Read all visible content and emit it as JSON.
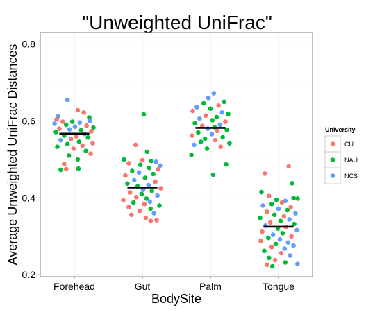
{
  "chart_data": {
    "type": "scatter",
    "subtype": "jitter-strip",
    "title": "\"Unweighted UniFrac\"",
    "xlabel": "BodySite",
    "ylabel": "Average Unweighted UniFrac Distances",
    "categories": [
      "Forehead",
      "Gut",
      "Palm",
      "Tongue"
    ],
    "ylim": [
      0.195,
      0.83
    ],
    "yticks": [
      0.2,
      0.4,
      0.6,
      0.8
    ],
    "ytick_labels": [
      "0.2",
      "0.4",
      "0.6",
      "0.8"
    ],
    "grid": true,
    "legend": {
      "title": "University",
      "placement": "right"
    },
    "series": [
      {
        "name": "CU",
        "color": "#F8766D"
      },
      {
        "name": "NAU",
        "color": "#00BA38"
      },
      {
        "name": "NCS",
        "color": "#619CFF"
      }
    ],
    "means": [
      {
        "category": "Forehead",
        "value": 0.567
      },
      {
        "category": "Gut",
        "value": 0.427
      },
      {
        "category": "Palm",
        "value": 0.582
      },
      {
        "category": "Tongue",
        "value": 0.325
      }
    ],
    "points": [
      {
        "c": "Forehead",
        "s": "NCS",
        "j": -0.1,
        "y": 0.655
      },
      {
        "c": "Forehead",
        "s": "CU",
        "j": 0.05,
        "y": 0.628
      },
      {
        "c": "Forehead",
        "s": "CU",
        "j": 0.14,
        "y": 0.622
      },
      {
        "c": "Forehead",
        "s": "NCS",
        "j": -0.24,
        "y": 0.612
      },
      {
        "c": "Forehead",
        "s": "CU",
        "j": -0.26,
        "y": 0.604
      },
      {
        "c": "Forehead",
        "s": "NAU",
        "j": 0.22,
        "y": 0.609
      },
      {
        "c": "Forehead",
        "s": "NCS",
        "j": 0.23,
        "y": 0.6
      },
      {
        "c": "Forehead",
        "s": "CU",
        "j": -0.17,
        "y": 0.598
      },
      {
        "c": "Forehead",
        "s": "NAU",
        "j": -0.03,
        "y": 0.598
      },
      {
        "c": "Forehead",
        "s": "NCS",
        "j": 0.08,
        "y": 0.596
      },
      {
        "c": "Forehead",
        "s": "NCS",
        "j": -0.29,
        "y": 0.593
      },
      {
        "c": "Forehead",
        "s": "NAU",
        "j": -0.12,
        "y": 0.59
      },
      {
        "c": "Forehead",
        "s": "CU",
        "j": 0.18,
        "y": 0.588
      },
      {
        "c": "Forehead",
        "s": "NCS",
        "j": 0.01,
        "y": 0.585
      },
      {
        "c": "Forehead",
        "s": "NAU",
        "j": 0.28,
        "y": 0.583
      },
      {
        "c": "Forehead",
        "s": "CU",
        "j": -0.22,
        "y": 0.58
      },
      {
        "c": "Forehead",
        "s": "NCS",
        "j": -0.07,
        "y": 0.578
      },
      {
        "c": "Forehead",
        "s": "NAU",
        "j": 0.1,
        "y": 0.576
      },
      {
        "c": "Forehead",
        "s": "CU",
        "j": 0.25,
        "y": 0.573
      },
      {
        "c": "Forehead",
        "s": "NAU",
        "j": -0.27,
        "y": 0.571
      },
      {
        "c": "Forehead",
        "s": "NCS",
        "j": 0.15,
        "y": 0.566
      },
      {
        "c": "Forehead",
        "s": "NAU",
        "j": -0.15,
        "y": 0.562
      },
      {
        "c": "Forehead",
        "s": "CU",
        "j": 0.03,
        "y": 0.56
      },
      {
        "c": "Forehead",
        "s": "NAU",
        "j": 0.2,
        "y": 0.557
      },
      {
        "c": "Forehead",
        "s": "CU",
        "j": -0.05,
        "y": 0.553
      },
      {
        "c": "Forehead",
        "s": "NCS",
        "j": -0.2,
        "y": 0.55
      },
      {
        "c": "Forehead",
        "s": "NAU",
        "j": 0.07,
        "y": 0.546
      },
      {
        "c": "Forehead",
        "s": "CU",
        "j": 0.27,
        "y": 0.542
      },
      {
        "c": "Forehead",
        "s": "NAU",
        "j": -0.1,
        "y": 0.54
      },
      {
        "c": "Forehead",
        "s": "CU",
        "j": 0.12,
        "y": 0.536
      },
      {
        "c": "Forehead",
        "s": "NAU",
        "j": -0.25,
        "y": 0.533
      },
      {
        "c": "Forehead",
        "s": "CU",
        "j": -0.01,
        "y": 0.528
      },
      {
        "c": "Forehead",
        "s": "NAU",
        "j": 0.17,
        "y": 0.522
      },
      {
        "c": "Forehead",
        "s": "CU",
        "j": 0.24,
        "y": 0.515
      },
      {
        "c": "Forehead",
        "s": "NAU",
        "j": -0.08,
        "y": 0.51
      },
      {
        "c": "Forehead",
        "s": "NAU",
        "j": 0.05,
        "y": 0.5
      },
      {
        "c": "Forehead",
        "s": "CU",
        "j": -0.15,
        "y": 0.488
      },
      {
        "c": "Forehead",
        "s": "NAU",
        "j": 0.06,
        "y": 0.476
      },
      {
        "c": "Forehead",
        "s": "NAU",
        "j": -0.2,
        "y": 0.473
      },
      {
        "c": "Forehead",
        "s": "CU",
        "j": -0.12,
        "y": 0.475
      },
      {
        "c": "Gut",
        "s": "NAU",
        "j": 0.02,
        "y": 0.617
      },
      {
        "c": "Gut",
        "s": "CU",
        "j": -0.1,
        "y": 0.538
      },
      {
        "c": "Gut",
        "s": "NAU",
        "j": 0.07,
        "y": 0.52
      },
      {
        "c": "Gut",
        "s": "NAU",
        "j": -0.27,
        "y": 0.5
      },
      {
        "c": "Gut",
        "s": "CU",
        "j": 0.0,
        "y": 0.498
      },
      {
        "c": "Gut",
        "s": "NAU",
        "j": 0.13,
        "y": 0.496
      },
      {
        "c": "Gut",
        "s": "NCS",
        "j": 0.2,
        "y": 0.494
      },
      {
        "c": "Gut",
        "s": "CU",
        "j": -0.2,
        "y": 0.49
      },
      {
        "c": "Gut",
        "s": "NAU",
        "j": -0.03,
        "y": 0.486
      },
      {
        "c": "Gut",
        "s": "NCS",
        "j": 0.26,
        "y": 0.484
      },
      {
        "c": "Gut",
        "s": "NAU",
        "j": 0.1,
        "y": 0.478
      },
      {
        "c": "Gut",
        "s": "CU",
        "j": 0.23,
        "y": 0.474
      },
      {
        "c": "Gut",
        "s": "NAU",
        "j": -0.15,
        "y": 0.47
      },
      {
        "c": "Gut",
        "s": "NCS",
        "j": -0.05,
        "y": 0.466
      },
      {
        "c": "Gut",
        "s": "NAU",
        "j": 0.16,
        "y": 0.462
      },
      {
        "c": "Gut",
        "s": "CU",
        "j": -0.25,
        "y": 0.458
      },
      {
        "c": "Gut",
        "s": "NAU",
        "j": 0.04,
        "y": 0.452
      },
      {
        "c": "Gut",
        "s": "NCS",
        "j": -0.12,
        "y": 0.446
      },
      {
        "c": "Gut",
        "s": "CU",
        "j": 0.19,
        "y": 0.442
      },
      {
        "c": "Gut",
        "s": "NAU",
        "j": -0.22,
        "y": 0.437
      },
      {
        "c": "Gut",
        "s": "NCS",
        "j": 0.09,
        "y": 0.433
      },
      {
        "c": "Gut",
        "s": "NAU",
        "j": -0.07,
        "y": 0.43
      },
      {
        "c": "Gut",
        "s": "CU",
        "j": 0.27,
        "y": 0.425
      },
      {
        "c": "Gut",
        "s": "NCS",
        "j": 0.01,
        "y": 0.421
      },
      {
        "c": "Gut",
        "s": "NAU",
        "j": 0.14,
        "y": 0.418
      },
      {
        "c": "Gut",
        "s": "CU",
        "j": -0.18,
        "y": 0.414
      },
      {
        "c": "Gut",
        "s": "NAU",
        "j": -0.01,
        "y": 0.41
      },
      {
        "c": "Gut",
        "s": "NCS",
        "j": 0.22,
        "y": 0.406
      },
      {
        "c": "Gut",
        "s": "CU",
        "j": -0.09,
        "y": 0.402
      },
      {
        "c": "Gut",
        "s": "NAU",
        "j": 0.06,
        "y": 0.398
      },
      {
        "c": "Gut",
        "s": "CU",
        "j": -0.28,
        "y": 0.394
      },
      {
        "c": "Gut",
        "s": "NCS",
        "j": 0.11,
        "y": 0.39
      },
      {
        "c": "Gut",
        "s": "NAU",
        "j": -0.13,
        "y": 0.388
      },
      {
        "c": "Gut",
        "s": "CU",
        "j": 0.03,
        "y": 0.384
      },
      {
        "c": "Gut",
        "s": "NAU",
        "j": 0.25,
        "y": 0.38
      },
      {
        "c": "Gut",
        "s": "CU",
        "j": -0.2,
        "y": 0.376
      },
      {
        "c": "Gut",
        "s": "NAU",
        "j": 0.12,
        "y": 0.372
      },
      {
        "c": "Gut",
        "s": "CU",
        "j": -0.04,
        "y": 0.366
      },
      {
        "c": "Gut",
        "s": "NCS",
        "j": 0.17,
        "y": 0.36
      },
      {
        "c": "Gut",
        "s": "CU",
        "j": -0.16,
        "y": 0.356
      },
      {
        "c": "Gut",
        "s": "CU",
        "j": 0.05,
        "y": 0.348
      },
      {
        "c": "Gut",
        "s": "CU",
        "j": 0.12,
        "y": 0.34
      },
      {
        "c": "Gut",
        "s": "CU",
        "j": 0.21,
        "y": 0.342
      },
      {
        "c": "Palm",
        "s": "NCS",
        "j": 0.05,
        "y": 0.672
      },
      {
        "c": "Palm",
        "s": "NCS",
        "j": -0.03,
        "y": 0.66
      },
      {
        "c": "Palm",
        "s": "NAU",
        "j": 0.2,
        "y": 0.65
      },
      {
        "c": "Palm",
        "s": "NAU",
        "j": -0.1,
        "y": 0.646
      },
      {
        "c": "Palm",
        "s": "CU",
        "j": 0.12,
        "y": 0.64
      },
      {
        "c": "Palm",
        "s": "NCS",
        "j": -0.2,
        "y": 0.636
      },
      {
        "c": "Palm",
        "s": "NAU",
        "j": 0.0,
        "y": 0.632
      },
      {
        "c": "Palm",
        "s": "CU",
        "j": -0.26,
        "y": 0.626
      },
      {
        "c": "Palm",
        "s": "NCS",
        "j": 0.17,
        "y": 0.622
      },
      {
        "c": "Palm",
        "s": "NAU",
        "j": 0.26,
        "y": 0.618
      },
      {
        "c": "Palm",
        "s": "CU",
        "j": -0.07,
        "y": 0.614
      },
      {
        "c": "Palm",
        "s": "NAU",
        "j": 0.09,
        "y": 0.61
      },
      {
        "c": "Palm",
        "s": "NCS",
        "j": -0.16,
        "y": 0.606
      },
      {
        "c": "Palm",
        "s": "NAU",
        "j": 0.03,
        "y": 0.602
      },
      {
        "c": "Palm",
        "s": "CU",
        "j": 0.22,
        "y": 0.598
      },
      {
        "c": "Palm",
        "s": "NAU",
        "j": -0.23,
        "y": 0.594
      },
      {
        "c": "Palm",
        "s": "NCS",
        "j": 0.14,
        "y": 0.59
      },
      {
        "c": "Palm",
        "s": "CU",
        "j": -0.12,
        "y": 0.587
      },
      {
        "c": "Palm",
        "s": "NAU",
        "j": 0.06,
        "y": 0.584
      },
      {
        "c": "Palm",
        "s": "NCS",
        "j": -0.04,
        "y": 0.58
      },
      {
        "c": "Palm",
        "s": "NAU",
        "j": 0.24,
        "y": 0.577
      },
      {
        "c": "Palm",
        "s": "CU",
        "j": 0.1,
        "y": 0.574
      },
      {
        "c": "Palm",
        "s": "NAU",
        "j": -0.18,
        "y": 0.57
      },
      {
        "c": "Palm",
        "s": "NCS",
        "j": 0.02,
        "y": 0.566
      },
      {
        "c": "Palm",
        "s": "CU",
        "j": -0.27,
        "y": 0.562
      },
      {
        "c": "Palm",
        "s": "NAU",
        "j": 0.18,
        "y": 0.558
      },
      {
        "c": "Palm",
        "s": "NAU",
        "j": -0.08,
        "y": 0.554
      },
      {
        "c": "Palm",
        "s": "CU",
        "j": 0.07,
        "y": 0.55
      },
      {
        "c": "Palm",
        "s": "NAU",
        "j": -0.14,
        "y": 0.546
      },
      {
        "c": "Palm",
        "s": "NAU",
        "j": 0.28,
        "y": 0.542
      },
      {
        "c": "Palm",
        "s": "NCS",
        "j": -0.24,
        "y": 0.538
      },
      {
        "c": "Palm",
        "s": "CU",
        "j": 0.15,
        "y": 0.533
      },
      {
        "c": "Palm",
        "s": "NAU",
        "j": -0.05,
        "y": 0.528
      },
      {
        "c": "Palm",
        "s": "NAU",
        "j": -0.28,
        "y": 0.512
      },
      {
        "c": "Palm",
        "s": "NAU",
        "j": 0.23,
        "y": 0.487
      },
      {
        "c": "Palm",
        "s": "NAU",
        "j": 0.04,
        "y": 0.46
      },
      {
        "c": "Tongue",
        "s": "CU",
        "j": 0.15,
        "y": 0.482
      },
      {
        "c": "Tongue",
        "s": "CU",
        "j": -0.2,
        "y": 0.463
      },
      {
        "c": "Tongue",
        "s": "NAU",
        "j": 0.2,
        "y": 0.438
      },
      {
        "c": "Tongue",
        "s": "NAU",
        "j": -0.25,
        "y": 0.415
      },
      {
        "c": "Tongue",
        "s": "CU",
        "j": -0.14,
        "y": 0.405
      },
      {
        "c": "Tongue",
        "s": "NAU",
        "j": 0.22,
        "y": 0.4
      },
      {
        "c": "Tongue",
        "s": "NAU",
        "j": 0.28,
        "y": 0.398
      },
      {
        "c": "Tongue",
        "s": "NAU",
        "j": -0.03,
        "y": 0.395
      },
      {
        "c": "Tongue",
        "s": "NCS",
        "j": 0.1,
        "y": 0.392
      },
      {
        "c": "Tongue",
        "s": "CU",
        "j": 0.05,
        "y": 0.388
      },
      {
        "c": "Tongue",
        "s": "NAU",
        "j": -0.1,
        "y": 0.384
      },
      {
        "c": "Tongue",
        "s": "NCS",
        "j": -0.23,
        "y": 0.38
      },
      {
        "c": "Tongue",
        "s": "CU",
        "j": 0.18,
        "y": 0.376
      },
      {
        "c": "Tongue",
        "s": "NCS",
        "j": 0.0,
        "y": 0.372
      },
      {
        "c": "Tongue",
        "s": "NAU",
        "j": 0.13,
        "y": 0.368
      },
      {
        "c": "Tongue",
        "s": "CU",
        "j": -0.17,
        "y": 0.364
      },
      {
        "c": "Tongue",
        "s": "NCS",
        "j": 0.25,
        "y": 0.36
      },
      {
        "c": "Tongue",
        "s": "NAU",
        "j": -0.06,
        "y": 0.356
      },
      {
        "c": "Tongue",
        "s": "CU",
        "j": 0.08,
        "y": 0.352
      },
      {
        "c": "Tongue",
        "s": "NAU",
        "j": -0.27,
        "y": 0.348
      },
      {
        "c": "Tongue",
        "s": "NCS",
        "j": 0.16,
        "y": 0.344
      },
      {
        "c": "Tongue",
        "s": "NAU",
        "j": 0.03,
        "y": 0.34
      },
      {
        "c": "Tongue",
        "s": "CU",
        "j": -0.12,
        "y": 0.336
      },
      {
        "c": "Tongue",
        "s": "NAU",
        "j": 0.23,
        "y": 0.332
      },
      {
        "c": "Tongue",
        "s": "NCS",
        "j": -0.19,
        "y": 0.328
      },
      {
        "c": "Tongue",
        "s": "CU",
        "j": 0.11,
        "y": 0.324
      },
      {
        "c": "Tongue",
        "s": "NAU",
        "j": -0.01,
        "y": 0.32
      },
      {
        "c": "Tongue",
        "s": "NCS",
        "j": 0.27,
        "y": 0.316
      },
      {
        "c": "Tongue",
        "s": "CU",
        "j": -0.24,
        "y": 0.312
      },
      {
        "c": "Tongue",
        "s": "NAU",
        "j": 0.06,
        "y": 0.308
      },
      {
        "c": "Tongue",
        "s": "NCS",
        "j": -0.08,
        "y": 0.304
      },
      {
        "c": "Tongue",
        "s": "CU",
        "j": 0.19,
        "y": 0.3
      },
      {
        "c": "Tongue",
        "s": "NAU",
        "j": -0.15,
        "y": 0.296
      },
      {
        "c": "Tongue",
        "s": "NCS",
        "j": 0.02,
        "y": 0.292
      },
      {
        "c": "Tongue",
        "s": "CU",
        "j": -0.26,
        "y": 0.288
      },
      {
        "c": "Tongue",
        "s": "NCS",
        "j": 0.14,
        "y": 0.284
      },
      {
        "c": "Tongue",
        "s": "NAU",
        "j": -0.04,
        "y": 0.28
      },
      {
        "c": "Tongue",
        "s": "NCS",
        "j": 0.22,
        "y": 0.276
      },
      {
        "c": "Tongue",
        "s": "CU",
        "j": -0.1,
        "y": 0.272
      },
      {
        "c": "Tongue",
        "s": "NCS",
        "j": 0.09,
        "y": 0.268
      },
      {
        "c": "Tongue",
        "s": "NAU",
        "j": -0.21,
        "y": 0.262
      },
      {
        "c": "Tongue",
        "s": "CU",
        "j": 0.04,
        "y": 0.256
      },
      {
        "c": "Tongue",
        "s": "NCS",
        "j": 0.17,
        "y": 0.25
      },
      {
        "c": "Tongue",
        "s": "NAU",
        "j": -0.14,
        "y": 0.244
      },
      {
        "c": "Tongue",
        "s": "CU",
        "j": -0.05,
        "y": 0.238
      },
      {
        "c": "Tongue",
        "s": "NAU",
        "j": 0.1,
        "y": 0.232
      },
      {
        "c": "Tongue",
        "s": "NCS",
        "j": 0.28,
        "y": 0.228
      },
      {
        "c": "Tongue",
        "s": "CU",
        "j": -0.17,
        "y": 0.226
      },
      {
        "c": "Tongue",
        "s": "NAU",
        "j": -0.09,
        "y": 0.222
      }
    ]
  }
}
